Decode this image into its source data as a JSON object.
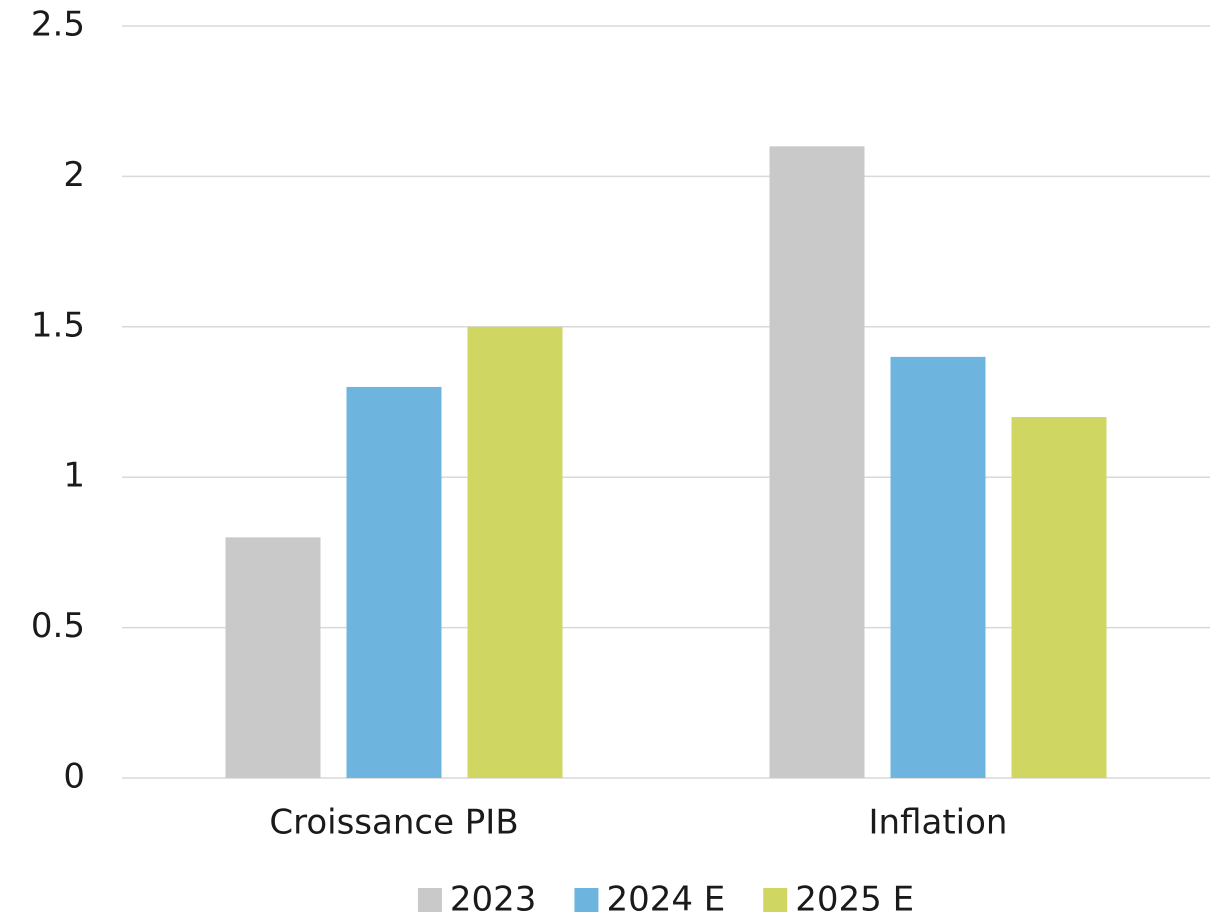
{
  "chart_data": {
    "type": "bar",
    "categories": [
      "Croissance PIB",
      "Inflation"
    ],
    "series": [
      {
        "name": "2023",
        "color": "#c9c9c9",
        "values": [
          0.8,
          2.1
        ]
      },
      {
        "name": "2024 E",
        "color": "#6db5de",
        "values": [
          1.3,
          1.4
        ]
      },
      {
        "name": "2025 E",
        "color": "#cfd762",
        "values": [
          1.5,
          1.2
        ]
      }
    ],
    "ylim": [
      0,
      2.5
    ],
    "yticks": [
      0,
      0.5,
      1,
      1.5,
      2,
      2.5
    ],
    "grid": true,
    "legend": "bottom"
  }
}
